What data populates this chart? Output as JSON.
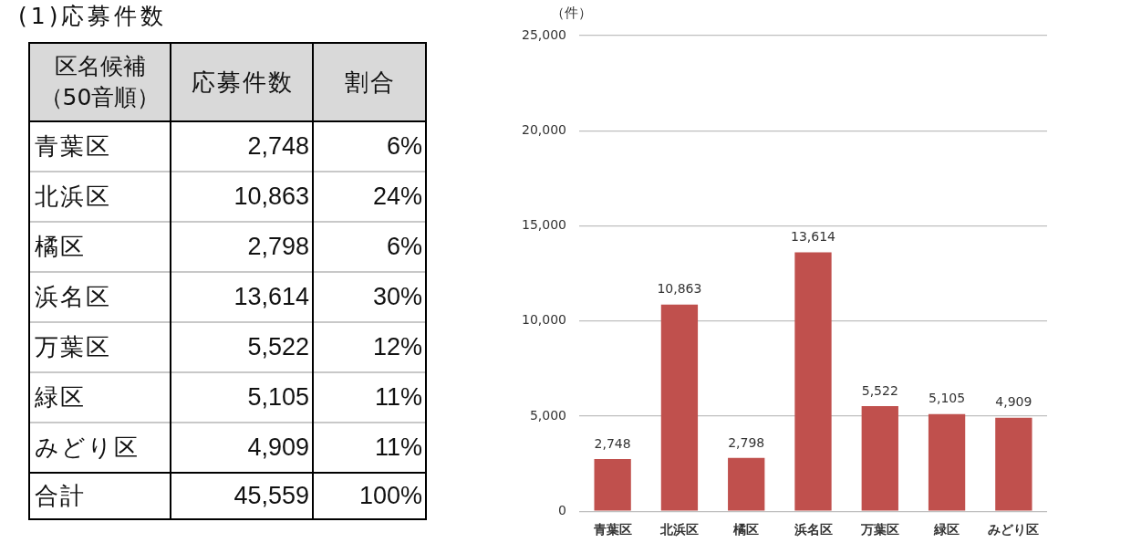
{
  "chart_data": [
    {
      "type": "other",
      "title": "(1)応募件数",
      "ylabel": "区名候補（50音順）",
      "categories": [
        "青葉区",
        "北浜区",
        "橘区",
        "浜名区",
        "万葉区",
        "緑区",
        "みどり区",
        "合計"
      ],
      "series": [
        {
          "name": "応募件数",
          "values": [
            2748,
            10863,
            2798,
            13614,
            5522,
            5105,
            4909,
            45559
          ],
          "value_labels": [
            "2,748",
            "10,863",
            "2,798",
            "13,614",
            "5,522",
            "5,105",
            "4,909",
            "45,559"
          ]
        },
        {
          "name": "割合",
          "values": [
            6,
            24,
            6,
            30,
            12,
            11,
            11,
            100
          ],
          "value_labels": [
            "6%",
            "24%",
            "6%",
            "30%",
            "12%",
            "11%",
            "11%",
            "100%"
          ]
        }
      ]
    },
    {
      "type": "bar",
      "ylabel": "（件）",
      "categories": [
        "青葉区",
        "北浜区",
        "橘区",
        "浜名区",
        "万葉区",
        "緑区",
        "みどり区"
      ],
      "values": [
        2748,
        10863,
        2798,
        13614,
        5522,
        5105,
        4909
      ],
      "value_labels": [
        "2,748",
        "10,863",
        "2,798",
        "13,614",
        "5,522",
        "5,105",
        "4,909"
      ],
      "color": "#c0504d",
      "ylim": [
        0,
        25000
      ],
      "yticks": [
        0,
        {
          "value": 5000,
          "label": "5,000"
        },
        {
          "value": 10000,
          "label": "10,000"
        },
        {
          "value": 15000,
          "label": "15,000"
        },
        {
          "value": 20000,
          "label": "20,000"
        },
        {
          "value": 25000,
          "label": "25,000"
        }
      ],
      "grid": "y"
    }
  ]
}
